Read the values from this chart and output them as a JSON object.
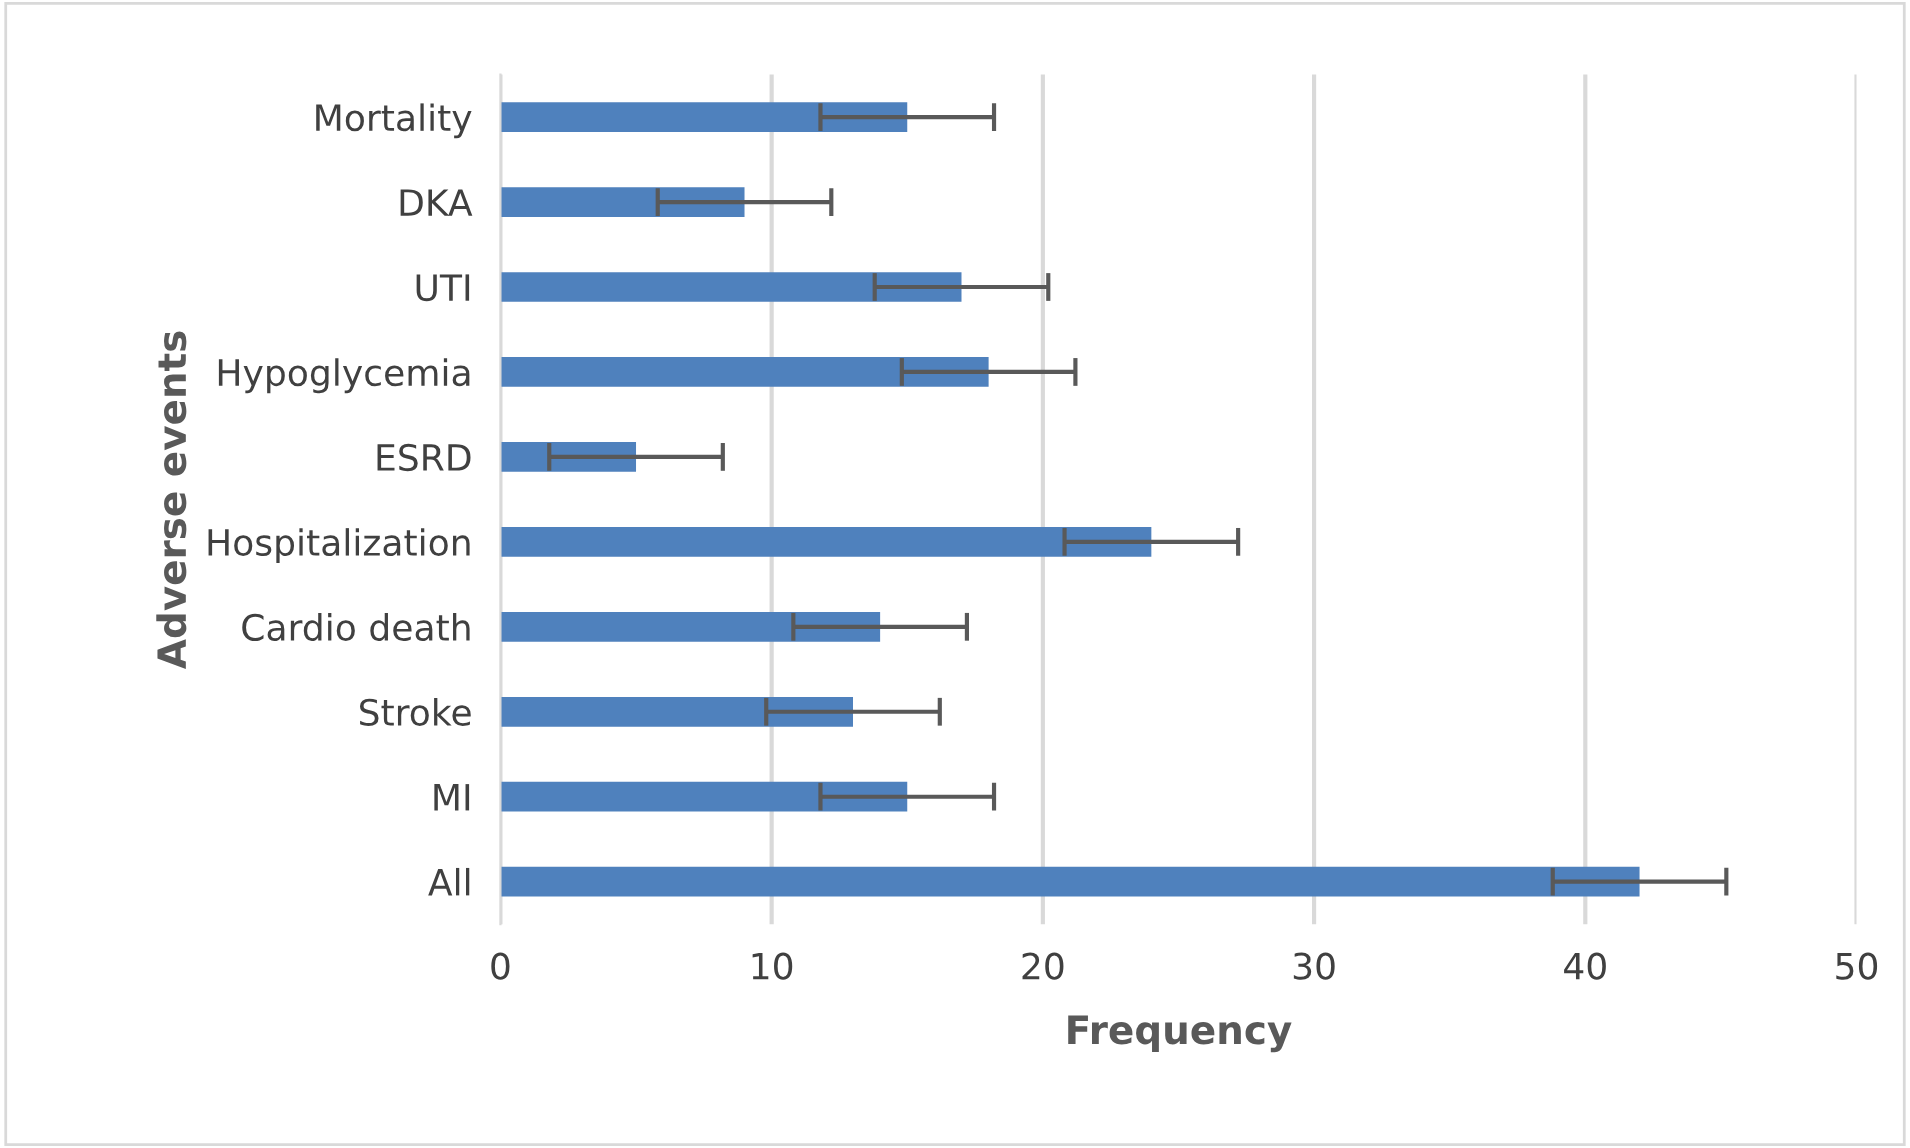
{
  "chart_data": {
    "type": "bar",
    "orientation": "horizontal",
    "categories": [
      "Mortality",
      "DKA",
      "UTI",
      "Hypoglycemia",
      "ESRD",
      "Hospitalization",
      "Cardio death",
      "Stroke",
      "MI",
      "All"
    ],
    "values": [
      15,
      9,
      17,
      18,
      5,
      24,
      14,
      13,
      15,
      42
    ],
    "errors": [
      3.2,
      3.2,
      3.2,
      3.2,
      3.2,
      3.2,
      3.2,
      3.2,
      3.2,
      3.2
    ],
    "color": "#4f81bd",
    "xlabel": "Frequency",
    "ylabel": "Adverse events",
    "xlim": [
      0,
      50
    ],
    "xticks": [
      0,
      10,
      20,
      30,
      40,
      50
    ],
    "grid": "x"
  }
}
